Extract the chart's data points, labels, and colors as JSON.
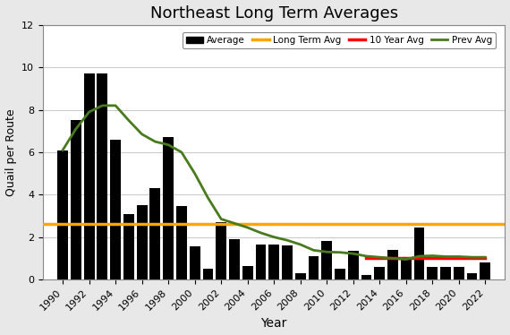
{
  "title": "Northeast Long Term Averages",
  "xlabel": "Year",
  "ylabel": "Quail per Route",
  "bar_years": [
    1990,
    1991,
    1992,
    1993,
    1994,
    1995,
    1996,
    1997,
    1998,
    1999,
    2000,
    2001,
    2002,
    2003,
    2004,
    2005,
    2006,
    2007,
    2008,
    2009,
    2010,
    2011,
    2012,
    2013,
    2014,
    2015,
    2016,
    2017,
    2018,
    2019,
    2020,
    2021,
    2022
  ],
  "bar_values": [
    6.1,
    7.5,
    9.7,
    9.7,
    6.6,
    3.1,
    3.5,
    4.3,
    6.7,
    3.45,
    1.55,
    0.5,
    2.7,
    1.9,
    0.65,
    1.65,
    1.65,
    1.6,
    0.3,
    1.1,
    1.8,
    0.5,
    1.35,
    0.2,
    0.6,
    1.4,
    1.0,
    2.45,
    0.6,
    0.6,
    0.6,
    0.3,
    0.8
  ],
  "bar_color": "#000000",
  "long_term_avg": 2.6,
  "long_term_avg_color": "#FFA500",
  "ten_year_avg": 1.0,
  "ten_year_avg_color": "#FF0000",
  "ten_year_avg_start": 2013,
  "ten_year_avg_end": 2022,
  "prev_avg_years": [
    1990,
    1991,
    1992,
    1993,
    1994,
    1995,
    1996,
    1997,
    1998,
    1999,
    2000,
    2001,
    2002,
    2003,
    2004,
    2005,
    2006,
    2007,
    2008,
    2009,
    2010,
    2011,
    2012,
    2013,
    2014,
    2015,
    2016,
    2017,
    2018,
    2019,
    2020,
    2021,
    2022
  ],
  "prev_avg_values": [
    6.1,
    7.1,
    7.9,
    8.2,
    8.2,
    7.5,
    6.85,
    6.5,
    6.35,
    6.0,
    5.0,
    3.85,
    2.85,
    2.65,
    2.45,
    2.2,
    2.0,
    1.85,
    1.65,
    1.38,
    1.3,
    1.28,
    1.22,
    1.1,
    1.05,
    1.0,
    0.95,
    1.1,
    1.12,
    1.08,
    1.08,
    1.05,
    1.05
  ],
  "prev_avg_color": "#4a7a1e",
  "ylim": [
    0,
    12
  ],
  "yticks": [
    0,
    2,
    4,
    6,
    8,
    10,
    12
  ],
  "xtick_years": [
    1990,
    1992,
    1994,
    1996,
    1998,
    2000,
    2002,
    2004,
    2006,
    2008,
    2010,
    2012,
    2014,
    2016,
    2018,
    2020,
    2022
  ],
  "bg_color": "#e8e8e8",
  "plot_bg_color": "#ffffff",
  "legend_labels": [
    "Average",
    "Long Term Avg",
    "10 Year Avg",
    "Prev Avg"
  ],
  "bar_width": 0.8,
  "long_term_avg_lw": 2.5,
  "ten_year_avg_lw": 2.5,
  "prev_avg_lw": 2.0
}
